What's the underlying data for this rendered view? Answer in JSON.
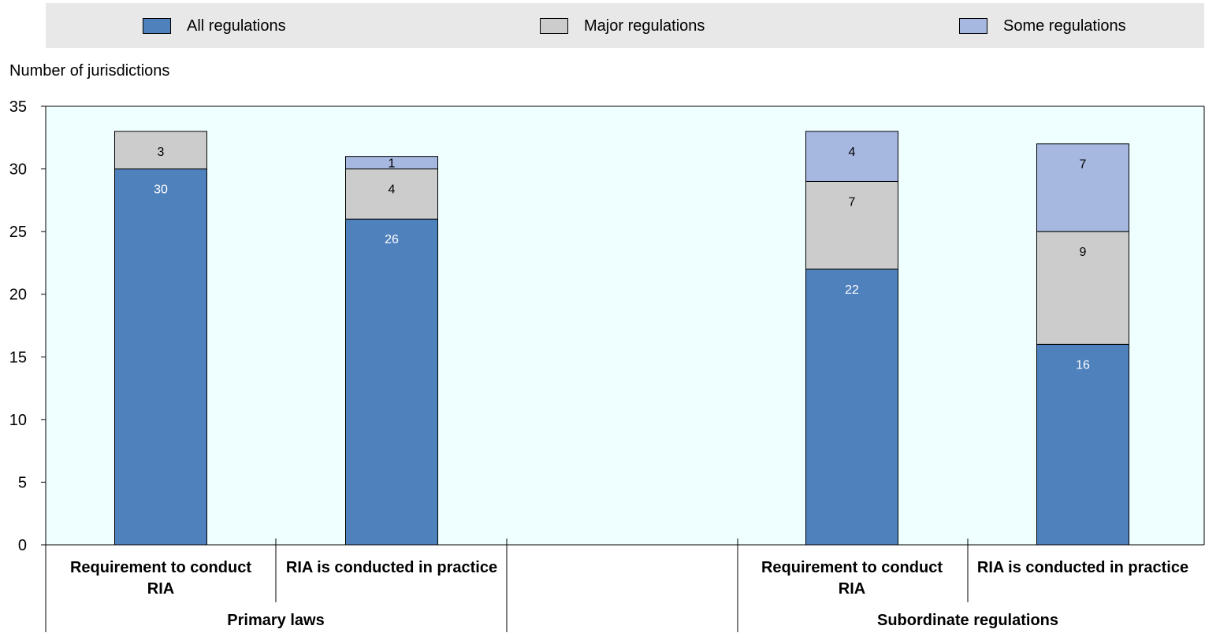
{
  "legend": [
    {
      "label": "All regulations",
      "color": "#4f81bd"
    },
    {
      "label": "Major regulations",
      "color": "#cccccc"
    },
    {
      "label": "Some regulations",
      "color": "#a6b7e0"
    }
  ],
  "chart_data": {
    "type": "bar",
    "stacked": true,
    "ylabel": "Number of jurisdictions",
    "ylim": [
      0,
      35
    ],
    "yticks": [
      0,
      5,
      10,
      15,
      20,
      25,
      30,
      35
    ],
    "plot_background": "#efffff",
    "groups": [
      "Primary laws",
      "Subordinate regulations"
    ],
    "categories": [
      {
        "label": [
          "Requirement to conduct",
          "RIA"
        ],
        "group": "Primary laws"
      },
      {
        "label": [
          "RIA is conducted in practice"
        ],
        "group": "Primary laws"
      },
      {
        "label": [
          "Requirement to conduct",
          "RIA"
        ],
        "group": "Subordinate regulations"
      },
      {
        "label": [
          "RIA is conducted in practice"
        ],
        "group": "Subordinate regulations"
      }
    ],
    "series": [
      {
        "name": "All regulations",
        "color": "#4f81bd",
        "label_color": "#ffffff",
        "values": [
          30,
          26,
          22,
          16
        ]
      },
      {
        "name": "Major regulations",
        "color": "#cccccc",
        "label_color": "#000000",
        "values": [
          3,
          4,
          7,
          9
        ]
      },
      {
        "name": "Some regulations",
        "color": "#a6b7e0",
        "label_color": "#000000",
        "values": [
          0,
          1,
          4,
          7
        ]
      }
    ]
  }
}
